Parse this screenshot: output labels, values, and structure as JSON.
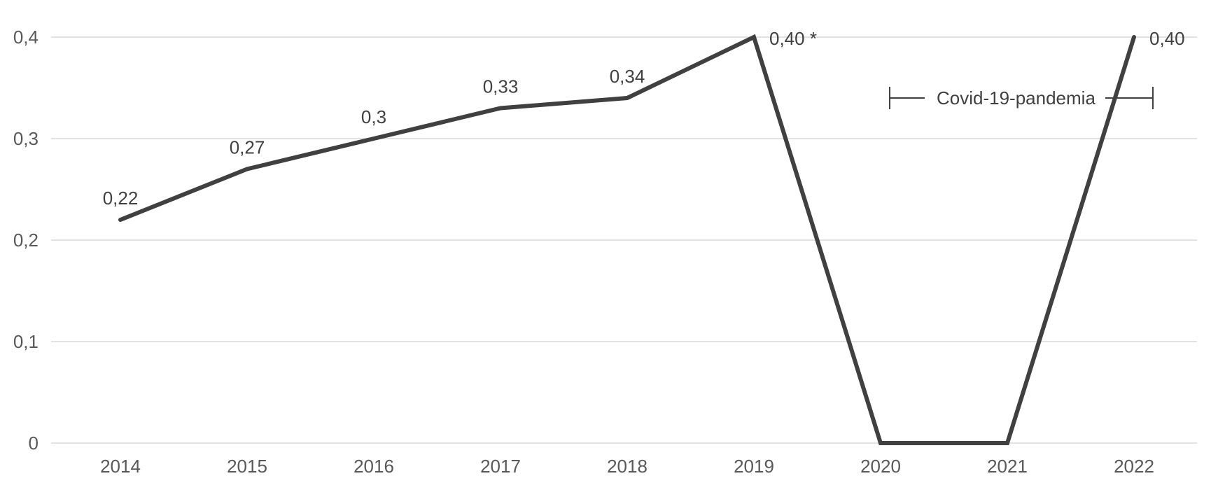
{
  "chart_data": {
    "type": "line",
    "x": [
      "2014",
      "2015",
      "2016",
      "2017",
      "2018",
      "2019",
      "2020",
      "2021",
      "2022"
    ],
    "series": [
      {
        "values": [
          0.22,
          0.27,
          0.3,
          0.33,
          0.34,
          0.4,
          0,
          0,
          0.4
        ]
      }
    ],
    "data_labels": [
      "0,22",
      "0,27",
      "0,3",
      "0,33",
      "0,34",
      "0,40 *",
      "",
      "",
      "0,40"
    ],
    "yticks": [
      "0",
      "0,1",
      "0,2",
      "0,3",
      "0,4"
    ],
    "ytick_values": [
      0,
      0.1,
      0.2,
      0.3,
      0.4
    ],
    "ylim": [
      0,
      0.4
    ],
    "grid": true,
    "line_color": "#404040",
    "grid_color": "#d9d9d9",
    "annotation": {
      "text": "Covid-19-pandemia",
      "from": "2020",
      "to": "2022"
    }
  }
}
